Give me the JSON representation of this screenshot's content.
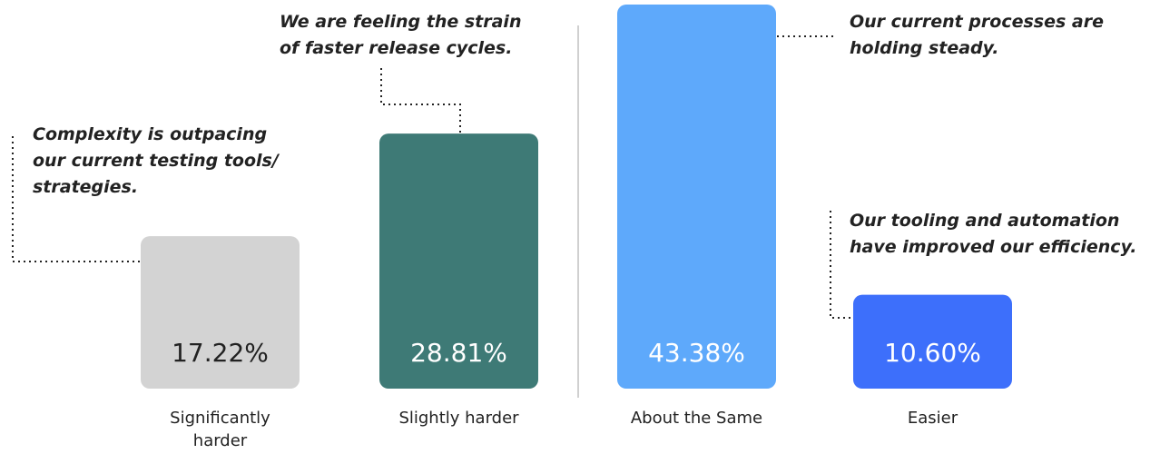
{
  "chart_data": {
    "type": "bar",
    "categories": [
      "Significantly harder",
      "Slightly harder",
      "About the Same",
      "Easier"
    ],
    "values": [
      17.22,
      28.81,
      43.38,
      10.6
    ],
    "value_labels": [
      "17.22%",
      "28.81%",
      "43.38%",
      "10.60%"
    ],
    "colors": [
      "#d3d3d3",
      "#3e7a76",
      "#5ea9fb",
      "#3d6ffb"
    ],
    "annotations": [
      "Complexity is outpacing our current testing tools/ strategies.",
      "We are feeling the strain of faster release cycles.",
      "Our current processes are holding steady.",
      "Our tooling and automation have improved our efficiency."
    ]
  }
}
